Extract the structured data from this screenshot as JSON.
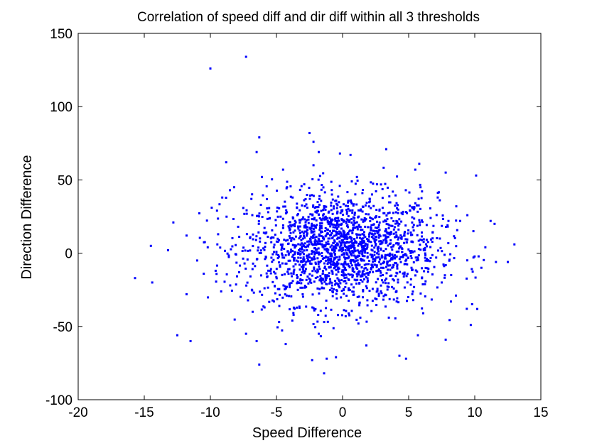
{
  "chart_data": {
    "type": "scatter",
    "title": "Correlation of speed diff and dir diff within all 3 thresholds",
    "xlabel": "Speed Difference",
    "ylabel": "Direction Difference",
    "xlim": [
      -20,
      15
    ],
    "ylim": [
      -100,
      150
    ],
    "x_ticks": [
      "-20",
      "-15",
      "-10",
      "-5",
      "0",
      "5",
      "10",
      "15"
    ],
    "y_ticks": [
      "-100",
      "-50",
      "0",
      "50",
      "100",
      "150"
    ],
    "grid": false,
    "legend": "none",
    "marker_color": "#0000ff",
    "series": [
      {
        "points": [
          [
            -10,
            126
          ],
          [
            -7.3,
            134
          ],
          [
            -2.5,
            82
          ],
          [
            -6.3,
            79
          ],
          [
            -2.2,
            76
          ],
          [
            3.3,
            71
          ],
          [
            -6.5,
            69
          ],
          [
            -1.8,
            69
          ],
          [
            -0.2,
            68
          ],
          [
            0.6,
            67
          ],
          [
            -8.8,
            62
          ],
          [
            -2.2,
            60
          ],
          [
            5.8,
            61
          ],
          [
            5.5,
            57
          ],
          [
            10.1,
            53
          ],
          [
            7.8,
            55
          ],
          [
            -4.5,
            57
          ],
          [
            -14.5,
            5
          ],
          [
            -13.2,
            2
          ],
          [
            -15.7,
            -17
          ],
          [
            -14.4,
            -20
          ],
          [
            -12.8,
            21
          ],
          [
            -11.5,
            -60
          ],
          [
            -12.5,
            -56
          ],
          [
            -11.8,
            -28
          ],
          [
            -11.8,
            12
          ],
          [
            -10.5,
            -14
          ],
          [
            11.2,
            22
          ],
          [
            12.5,
            -6
          ],
          [
            13.0,
            6
          ],
          [
            11.6,
            -6
          ],
          [
            11.5,
            20
          ],
          [
            9.9,
            15
          ],
          [
            9.7,
            -49
          ],
          [
            9.4,
            -38
          ],
          [
            7.8,
            -59
          ],
          [
            5.7,
            -56
          ],
          [
            4.8,
            -72
          ],
          [
            4.3,
            -70
          ],
          [
            1.8,
            -63
          ],
          [
            -0.5,
            -71
          ],
          [
            -1.4,
            -82
          ],
          [
            -2.3,
            -73
          ],
          [
            -1.2,
            -72
          ],
          [
            -6.3,
            -76
          ],
          [
            -6.5,
            -60
          ],
          [
            -4.3,
            -62
          ],
          [
            -4.8,
            -47
          ],
          [
            -7.3,
            -55
          ],
          [
            -9.9,
            31
          ],
          [
            -9.5,
            29
          ],
          [
            -9.1,
            38
          ],
          [
            -8.2,
            45
          ],
          [
            -6.9,
            37
          ],
          [
            -6.1,
            52
          ],
          [
            -4.2,
            45
          ],
          [
            -2.9,
            47
          ],
          [
            -0.8,
            40
          ],
          [
            0.7,
            49
          ],
          [
            1.5,
            41
          ],
          [
            2.6,
            47
          ],
          [
            3.8,
            42
          ],
          [
            5.9,
            45
          ],
          [
            7.2,
            38
          ],
          [
            8.6,
            32
          ],
          [
            -6.8,
            -40
          ],
          [
            -3.8,
            -46
          ],
          [
            -1.8,
            -55
          ],
          [
            1.2,
            -48
          ],
          [
            3.5,
            -44
          ],
          [
            6.1,
            -41
          ],
          [
            8.2,
            -33
          ],
          [
            -11.0,
            -5
          ],
          [
            -10.2,
            4
          ],
          [
            -9.6,
            -12
          ],
          [
            10.8,
            4
          ],
          [
            10.5,
            -10
          ],
          [
            -8.5,
            -22
          ],
          [
            8.9,
            22
          ],
          [
            -7.9,
            18
          ],
          [
            7.5,
            -20
          ]
        ],
        "cluster": {
          "center": [
            0,
            3
          ],
          "x_std": 3.6,
          "y_std": 19,
          "count": 1900
        }
      }
    ]
  }
}
